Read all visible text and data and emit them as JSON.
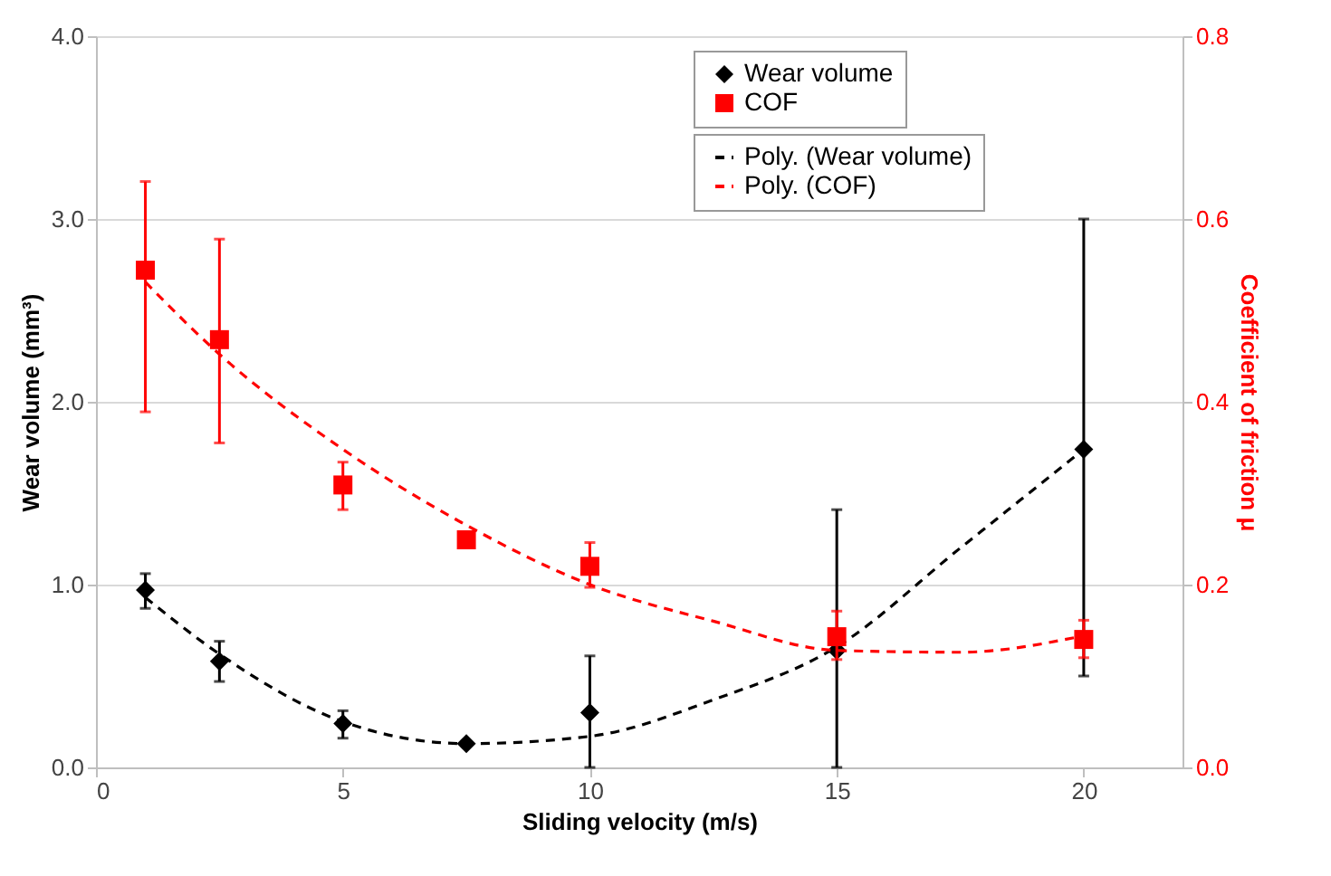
{
  "chart_data": {
    "type": "scatter",
    "xlabel": "Sliding velocity (m/s)",
    "ylabel": "Wear volume (mm³)",
    "y2label": "Coefficient of friction μ",
    "x": [
      1,
      2.5,
      5,
      7.5,
      10,
      15,
      20
    ],
    "series": [
      {
        "name": "Wear volume",
        "marker": "diamond",
        "color": "#000000",
        "values": [
          0.97,
          0.58,
          0.24,
          0.13,
          0.3,
          0.64,
          1.74
        ],
        "errors": [
          [
            0.87,
            1.06
          ],
          [
            0.47,
            0.69
          ],
          [
            0.16,
            0.31
          ],
          null,
          [
            0,
            0.61
          ],
          [
            0,
            1.41
          ],
          [
            0.5,
            3.0
          ]
        ]
      },
      {
        "name": "COF",
        "marker": "square",
        "axis": "y2",
        "color": "#ff0000",
        "values": [
          0.544,
          0.468,
          0.309,
          0.249,
          0.22,
          0.143,
          0.14
        ],
        "errors": [
          [
            0.389,
            0.641
          ],
          [
            0.355,
            0.578
          ],
          [
            0.282,
            0.334
          ],
          null,
          [
            0.197,
            0.246
          ],
          [
            0.118,
            0.171
          ],
          [
            0.12,
            0.161
          ]
        ]
      },
      {
        "name": "Poly. (Wear volume)",
        "type": "line",
        "line_style": "dashed",
        "color": "#000000",
        "x": [
          1,
          2.5,
          5,
          7.5,
          10,
          12.5,
          15,
          17.5,
          20
        ],
        "values": [
          0.93,
          0.62,
          0.25,
          0.13,
          0.17,
          0.37,
          0.66,
          1.2,
          1.74
        ]
      },
      {
        "name": "Poly. (COF)",
        "type": "line",
        "line_style": "dashed",
        "axis": "y2",
        "color": "#ff0000",
        "x": [
          1,
          2.5,
          5,
          7.5,
          10,
          12.5,
          15,
          17.5,
          20
        ],
        "values": [
          0.531,
          0.452,
          0.348,
          0.265,
          0.2,
          0.16,
          0.128,
          0.126,
          0.144
        ]
      }
    ],
    "xlim": [
      0,
      22
    ],
    "xticks": [
      0,
      5,
      10,
      15,
      20
    ],
    "ylim": [
      0,
      4
    ],
    "yticks": [
      {
        "value": 0,
        "label": "0.0"
      },
      {
        "value": 1,
        "label": "1.0"
      },
      {
        "value": 2,
        "label": "2.0"
      },
      {
        "value": 3,
        "label": "3.0"
      },
      {
        "value": 4,
        "label": "4.0"
      }
    ],
    "y2lim": [
      0,
      0.8
    ],
    "y2ticks": [
      {
        "value": 0,
        "label": "0.0"
      },
      {
        "value": 0.2,
        "label": "0.2"
      },
      {
        "value": 0.4,
        "label": "0.4"
      },
      {
        "value": 0.6,
        "label": "0.6"
      },
      {
        "value": 0.8,
        "label": "0.8"
      }
    ],
    "grid": "y",
    "legend": "top right"
  }
}
